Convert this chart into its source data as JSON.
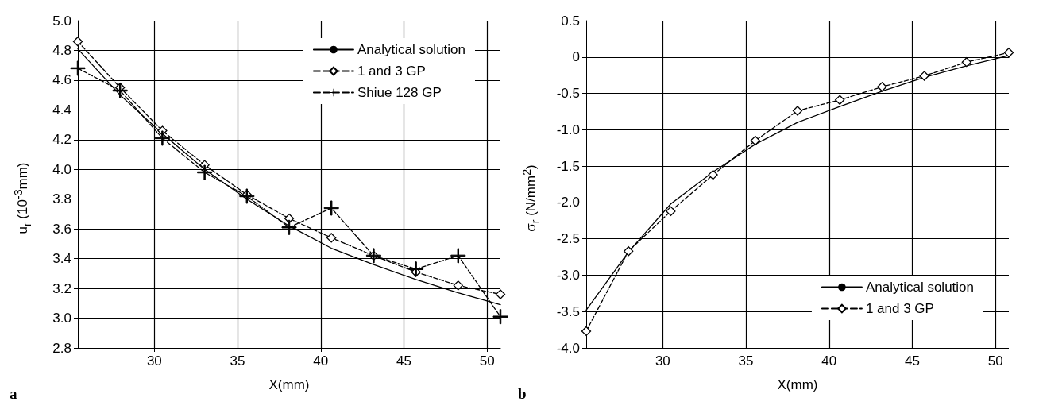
{
  "chart_data": [
    {
      "type": "line",
      "xlabel": "X(mm)",
      "ylabel": "u$_{r}$ (10$^{-3}$mm)",
      "annotations": [
        "a"
      ],
      "legend": "top right",
      "grid": true,
      "xlim": [
        25.4,
        50.8
      ],
      "xticks": [
        30,
        35,
        40,
        45,
        50
      ],
      "ylim": [
        2.8,
        5.0
      ],
      "yticks": [
        2.8,
        {
          "value": 3,
          "label": "3.0"
        },
        3.2,
        3.4,
        3.6,
        3.8,
        {
          "value": 4,
          "label": "4.0"
        },
        4.2,
        4.4,
        4.6,
        4.8,
        {
          "value": 5,
          "label": "5.0"
        }
      ],
      "x": [
        25.4,
        27.94,
        30.48,
        33.02,
        35.56,
        38.1,
        40.64,
        43.18,
        45.72,
        48.26,
        50.8
      ],
      "series": [
        {
          "name": "Analytical solution",
          "color": "#000000",
          "marker": "none",
          "line_style": "solid",
          "values": [
            4.81,
            4.5,
            4.24,
            4.0,
            3.8,
            3.62,
            3.47,
            3.36,
            3.26,
            3.17,
            3.09
          ]
        },
        {
          "name": "1 and 3 GP",
          "color": "#000000",
          "marker": "diamond",
          "line_style": "dashed",
          "values": [
            4.86,
            4.55,
            4.26,
            4.03,
            3.83,
            3.67,
            3.54,
            3.42,
            3.31,
            3.22,
            3.16
          ]
        },
        {
          "name": "Shiue 128 GP",
          "color": "#000000",
          "marker": "cross",
          "line_style": "dashed",
          "values": [
            4.68,
            4.53,
            4.21,
            3.98,
            3.82,
            3.61,
            3.74,
            3.42,
            3.33,
            3.42,
            3.01
          ]
        }
      ]
    },
    {
      "type": "line",
      "xlabel": "X(mm)",
      "ylabel": "σ$_{r}$ (N/mm$^{2}$)",
      "annotations": [
        "b"
      ],
      "legend": "bottom right",
      "grid": true,
      "xlim": [
        25.4,
        50.8
      ],
      "xticks": [
        30,
        35,
        40,
        45,
        50
      ],
      "ylim": [
        -4.0,
        0.5
      ],
      "yticks": [
        {
          "value": -4,
          "label": "-4.0"
        },
        -3.5,
        {
          "value": -3,
          "label": "-3.0"
        },
        -2.5,
        {
          "value": -2,
          "label": "-2.0"
        },
        -1.5,
        {
          "value": -1,
          "label": "-1.0"
        },
        -0.5,
        0,
        0.5
      ],
      "x": [
        25.4,
        27.94,
        30.48,
        33.02,
        35.56,
        38.1,
        40.64,
        43.18,
        45.72,
        48.26,
        50.8
      ],
      "series": [
        {
          "name": "Analytical solution",
          "color": "#000000",
          "marker": "none",
          "line_style": "solid",
          "values": [
            -3.48,
            -2.68,
            -2.02,
            -1.58,
            -1.2,
            -0.9,
            -0.68,
            -0.47,
            -0.28,
            -0.12,
            0.02
          ]
        },
        {
          "name": "1 and 3 GP",
          "color": "#000000",
          "marker": "diamond",
          "line_style": "dashed",
          "values": [
            -3.77,
            -2.67,
            -2.12,
            -1.62,
            -1.15,
            -0.74,
            -0.59,
            -0.41,
            -0.26,
            -0.07,
            0.06
          ]
        }
      ]
    }
  ]
}
